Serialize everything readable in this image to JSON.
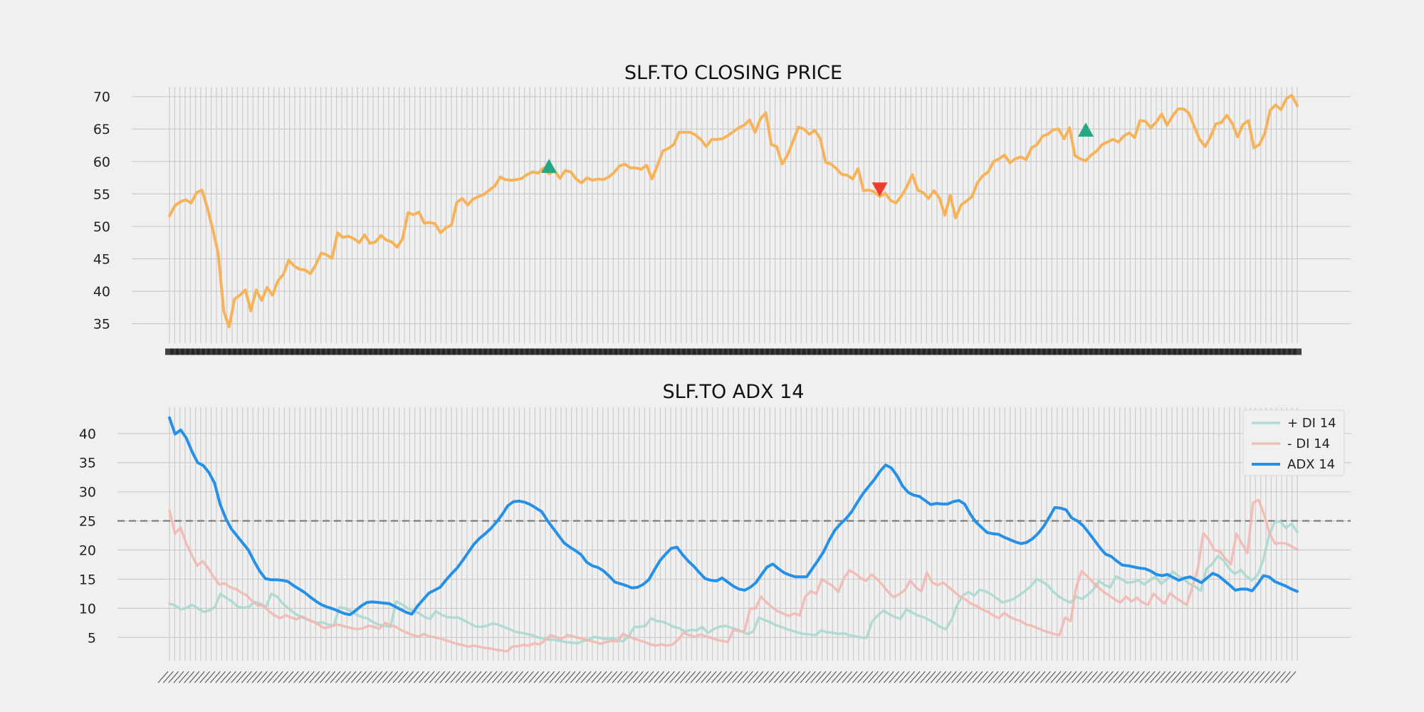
{
  "figure": {
    "background": "#f0f0f0",
    "grid_color": "#cbcbcb"
  },
  "chart_data": [
    {
      "type": "line",
      "title": "SLF.TO CLOSING PRICE",
      "xlabel": "",
      "ylabel": "",
      "ylim": [
        32,
        71.5
      ],
      "yticks": [
        35,
        40,
        45,
        50,
        55,
        60,
        65,
        70
      ],
      "grid": true,
      "x_tick_count": 217,
      "x_tick_labels_note": "",
      "series": [
        {
          "color": "#f7b35a",
          "values": [
            51.6,
            53.2,
            53.8,
            54.1,
            53.6,
            55.2,
            55.6,
            52.8,
            49.5,
            45.8,
            37,
            34.5,
            38.8,
            39.4,
            40.2,
            37,
            40.2,
            38.6,
            40.6,
            39.4,
            41.6,
            42.6,
            44.8,
            43.9,
            43.4,
            43.3,
            42.7,
            44.1,
            45.9,
            45.6,
            45.1,
            49,
            48.3,
            48.5,
            48.1,
            47.5,
            48.7,
            47.4,
            47.6,
            48.6,
            47.9,
            47.6,
            46.8,
            48.1,
            52.1,
            51.8,
            52.2,
            50.5,
            50.6,
            50.4,
            49,
            49.8,
            50.2,
            53.7,
            54.3,
            53.3,
            54.2,
            54.6,
            54.9,
            55.6,
            56.2,
            57.6,
            57.2,
            57.1,
            57.2,
            57.4,
            58,
            58.4,
            58.2,
            59,
            58.1,
            58.6,
            57.4,
            58.6,
            58.4,
            57.3,
            56.7,
            57.5,
            57.1,
            57.3,
            57.2,
            57.6,
            58.3,
            59.3,
            59.6,
            59,
            59,
            58.8,
            59.4,
            57.3,
            59.4,
            61.6,
            62,
            62.6,
            64.5,
            64.5,
            64.5,
            64.1,
            63.4,
            62.3,
            63.4,
            63.4,
            63.5,
            64,
            64.6,
            65.2,
            65.6,
            66.4,
            64.5,
            66.6,
            67.5,
            62.6,
            62.3,
            59.6,
            61,
            63.1,
            65.3,
            65,
            64.2,
            64.8,
            63.6,
            59.9,
            59.6,
            58.9,
            58,
            57.9,
            57.3,
            58.9,
            55.5,
            55.6,
            55.3,
            54.6,
            55.1,
            54,
            53.6,
            54.7,
            56.1,
            58,
            55.6,
            55.2,
            54.3,
            55.5,
            54.4,
            51.7,
            54.8,
            51.3,
            53.3,
            53.9,
            54.6,
            56.7,
            57.8,
            58.4,
            60,
            60.4,
            61,
            59.8,
            60.4,
            60.7,
            60.3,
            62.1,
            62.6,
            63.9,
            64.2,
            64.9,
            65,
            63.5,
            65.2,
            60.9,
            60.4,
            60.1,
            61,
            61.6,
            62.6,
            63,
            63.4,
            63,
            63.9,
            64.4,
            63.7,
            66.3,
            66.2,
            65.2,
            66.1,
            67.3,
            65.6,
            67,
            68.1,
            68.1,
            67.5,
            65.4,
            63.4,
            62.3,
            63.8,
            65.8,
            66,
            67.1,
            65.9,
            63.8,
            65.7,
            66.3,
            62.1,
            62.6,
            64.3,
            67.9,
            68.7,
            68,
            69.7,
            70.2,
            68.6
          ]
        }
      ],
      "markers": [
        {
          "type": "buy",
          "symbol": "triangle-up",
          "color": "#22a884",
          "index": 70,
          "value": 59.2
        },
        {
          "type": "sell",
          "symbol": "triangle-down",
          "color": "#f03b2d",
          "index": 131,
          "value": 55.8
        },
        {
          "type": "buy",
          "symbol": "triangle-up",
          "color": "#22a884",
          "index": 169,
          "value": 64.8
        }
      ]
    },
    {
      "type": "line",
      "title": "SLF.TO ADX 14",
      "xlabel": "",
      "ylabel": "",
      "ylim": [
        1,
        44.5
      ],
      "yticks": [
        5,
        10,
        15,
        20,
        25,
        30,
        35,
        40
      ],
      "grid": true,
      "reference_line": {
        "value": 25,
        "style": "dashed",
        "color": "#777777"
      },
      "legend": {
        "position": "top-right"
      },
      "series": [
        {
          "name": "+ DI 14",
          "color": "#a7d7d0",
          "values": [
            10.8,
            10.5,
            9.8,
            10.1,
            10.6,
            10,
            9.4,
            9.6,
            10.2,
            12.5,
            11.8,
            11.2,
            10.3,
            10.1,
            10.2,
            11.1,
            10.8,
            10.2,
            12.5,
            12,
            10.8,
            10,
            9.2,
            8.6,
            8.2,
            7.8,
            7.5,
            7.6,
            7.2,
            7,
            10.2,
            10,
            9.5,
            8.9,
            8.5,
            8.2,
            7.6,
            7.2,
            7,
            6.8,
            11.2,
            10.7,
            10,
            9.5,
            9.2,
            8.5,
            8.2,
            9.5,
            8.9,
            8.5,
            8.4,
            8.4,
            7.9,
            7.4,
            6.9,
            6.8,
            7,
            7.4,
            7.2,
            6.8,
            6.4,
            6,
            5.8,
            5.6,
            5.4,
            5,
            4.8,
            4.6,
            4.6,
            4.4,
            4.2,
            4.1,
            4,
            4.4,
            4.6,
            5.1,
            4.9,
            4.7,
            4.8,
            4.6,
            4.3,
            5.1,
            6.8,
            6.8,
            7,
            8.3,
            7.8,
            7.7,
            7.3,
            6.8,
            6.6,
            6,
            6.3,
            6.2,
            6.8,
            5.8,
            6.4,
            6.8,
            7,
            6.7,
            6.4,
            6,
            5.6,
            6,
            8.4,
            8,
            7.6,
            7.1,
            6.8,
            6.4,
            6.1,
            5.8,
            5.6,
            5.5,
            5.4,
            6.2,
            5.9,
            5.8,
            5.6,
            5.7,
            5.4,
            5.2,
            5,
            4.9,
            7.8,
            8.8,
            9.6,
            9,
            8.5,
            8.2,
            9.8,
            9.3,
            8.8,
            8.5,
            8,
            7.5,
            6.8,
            6.4,
            8,
            10.6,
            12.2,
            12.8,
            12.2,
            13.2,
            12.9,
            12.4,
            11.7,
            11,
            11.3,
            11.6,
            12.3,
            13,
            13.8,
            15,
            14.6,
            13.9,
            12.8,
            12,
            11.4,
            11,
            12,
            11.6,
            12.3,
            13.2,
            14.7,
            14,
            13.6,
            15.5,
            15,
            14.4,
            14.5,
            14.8,
            14.1,
            14.8,
            15.4,
            14.2,
            15,
            16.3,
            15.6,
            14.9,
            14.2,
            13.7,
            13,
            16.8,
            17.6,
            19,
            18.2,
            16.8,
            15.9,
            16.6,
            15.5,
            14.8,
            15.7,
            18.3,
            22.4,
            24.8,
            24.9,
            23.8,
            24.5,
            23.1
          ]
        },
        {
          "name": "- DI 14",
          "color": "#f2b6ae",
          "values": [
            26.8,
            22.8,
            23.9,
            21.2,
            19.2,
            17.3,
            18.1,
            16.9,
            15.4,
            14.1,
            14.3,
            13.6,
            13.3,
            12.7,
            12.2,
            11.2,
            10.5,
            10.4,
            9.5,
            8.8,
            8.3,
            8.8,
            8.4,
            8.1,
            8.6,
            8.1,
            7.7,
            7.2,
            6.6,
            6.8,
            7.2,
            7.1,
            6.8,
            6.6,
            6.4,
            6.6,
            7,
            6.8,
            6.5,
            7.5,
            7.1,
            6.8,
            6.2,
            5.8,
            5.4,
            5.1,
            5.6,
            5.2,
            5,
            4.8,
            4.5,
            4.2,
            3.9,
            3.7,
            3.4,
            3.6,
            3.4,
            3.2,
            3.1,
            2.9,
            2.8,
            2.6,
            3.4,
            3.5,
            3.7,
            3.6,
            4,
            3.8,
            4.6,
            5.4,
            5,
            4.8,
            5.4,
            5.2,
            4.9,
            4.7,
            4.4,
            4.2,
            3.9,
            4.2,
            4.4,
            4.3,
            5.6,
            5.2,
            4.8,
            4.5,
            4.2,
            3.8,
            3.6,
            3.8,
            3.6,
            3.8,
            4.6,
            5.8,
            5.4,
            5.1,
            5.5,
            5.2,
            4.9,
            4.6,
            4.4,
            4.2,
            6.3,
            6.1,
            6,
            9.9,
            10,
            12,
            11,
            10.2,
            9.5,
            9.1,
            8.7,
            9.1,
            8.8,
            12,
            12.9,
            12.5,
            15,
            14.4,
            13.8,
            12.8,
            15.2,
            16.5,
            16,
            15.2,
            14.7,
            15.8,
            15,
            14,
            12.8,
            11.9,
            12.4,
            13.1,
            14.8,
            13.6,
            12.9,
            16.1,
            14.4,
            14,
            14.4,
            13.6,
            12.8,
            12,
            11.5,
            10.8,
            10.4,
            9.8,
            9.4,
            8.8,
            8.3,
            9.2,
            8.5,
            8.1,
            7.8,
            7.2,
            7,
            6.6,
            6.2,
            5.9,
            5.6,
            5.4,
            8.4,
            7.8,
            13.6,
            16.4,
            15.5,
            14.5,
            13.6,
            12.8,
            12.2,
            11.5,
            11,
            12,
            11.2,
            11.8,
            11,
            10.6,
            12.5,
            11.6,
            10.8,
            12.6,
            11.8,
            11.2,
            10.6,
            13.6,
            16.8,
            22.9,
            21.8,
            20,
            19.8,
            18.5,
            17.6,
            22.8,
            21.1,
            19.5,
            28.1,
            28.6,
            26.1,
            22.8,
            21.1,
            21.2,
            21.1,
            20.6,
            20.1
          ]
        },
        {
          "name": "ADX 14",
          "color": "#2490e8",
          "values": [
            42.7,
            39.9,
            40.6,
            39.2,
            36.9,
            35,
            34.5,
            33.3,
            31.5,
            27.8,
            25.4,
            23.6,
            22.4,
            21.2,
            20,
            18.1,
            16.4,
            15.1,
            14.9,
            14.9,
            14.8,
            14.6,
            13.9,
            13.3,
            12.7,
            11.9,
            11.2,
            10.6,
            10.2,
            9.9,
            9.5,
            9.1,
            8.9,
            9.6,
            10.4,
            11,
            11.1,
            11,
            10.9,
            10.8,
            10.3,
            9.8,
            9.3,
            9,
            10.4,
            11.5,
            12.6,
            13.1,
            13.6,
            14.8,
            15.9,
            16.9,
            18.2,
            19.6,
            21,
            22,
            22.8,
            23.7,
            24.8,
            26.1,
            27.6,
            28.3,
            28.4,
            28.2,
            27.8,
            27.2,
            26.6,
            25.1,
            23.8,
            22.5,
            21.2,
            20.5,
            19.9,
            19.2,
            17.9,
            17.3,
            17,
            16.4,
            15.5,
            14.5,
            14.2,
            13.9,
            13.5,
            13.6,
            14.1,
            14.9,
            16.6,
            18.2,
            19.3,
            20.3,
            20.5,
            19.2,
            18.1,
            17.2,
            16.1,
            15.1,
            14.8,
            14.7,
            15.2,
            14.5,
            13.8,
            13.3,
            13.1,
            13.6,
            14.4,
            15.8,
            17.1,
            17.6,
            16.8,
            16.1,
            15.7,
            15.4,
            15.4,
            15.4,
            16.8,
            18.2,
            19.7,
            21.7,
            23.4,
            24.5,
            25.4,
            26.6,
            28.2,
            29.7,
            30.9,
            32.1,
            33.5,
            34.6,
            34.1,
            32.8,
            31,
            29.9,
            29.4,
            29.2,
            28.5,
            27.8,
            28,
            27.9,
            27.9,
            28.3,
            28.5,
            27.9,
            26.2,
            24.8,
            23.9,
            23,
            22.8,
            22.7,
            22.2,
            21.8,
            21.4,
            21.1,
            21.3,
            21.9,
            22.8,
            24,
            25.6,
            27.3,
            27.2,
            26.9,
            25.5,
            25,
            24.2,
            23,
            21.7,
            20.4,
            19.3,
            18.9,
            18.1,
            17.4,
            17.3,
            17.1,
            16.9,
            16.8,
            16.4,
            15.8,
            15.6,
            15.8,
            15.3,
            14.8,
            15.2,
            15.4,
            14.9,
            14.4,
            15.2,
            16,
            15.6,
            14.8,
            14,
            13.1,
            13.3,
            13.3,
            13,
            14.2,
            15.6,
            15.4,
            14.6,
            14.2,
            13.8,
            13.3,
            12.9
          ]
        }
      ]
    }
  ]
}
